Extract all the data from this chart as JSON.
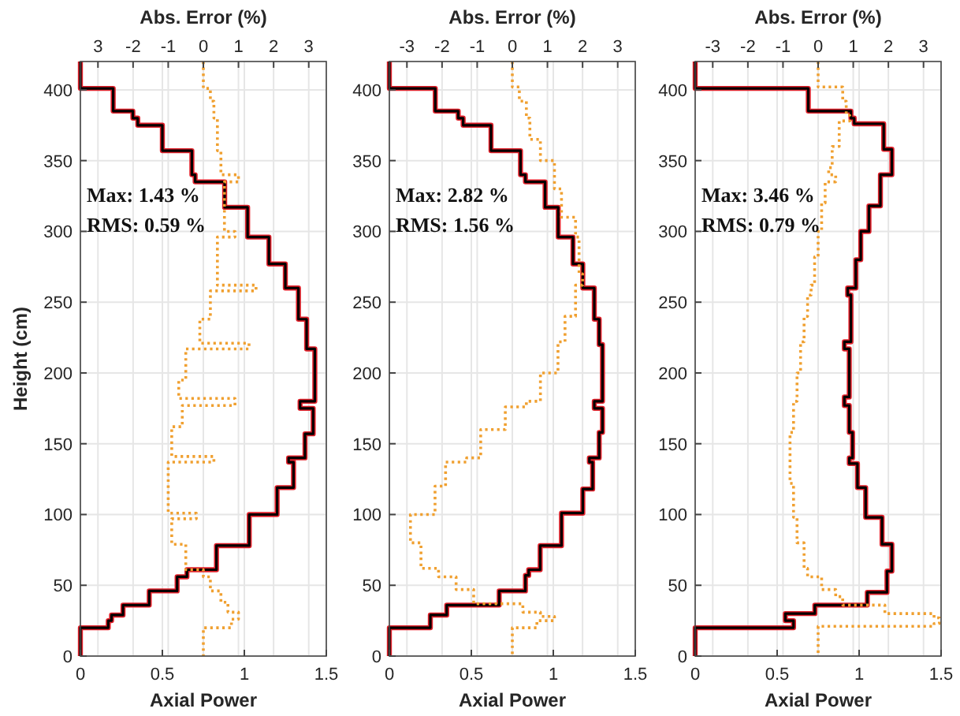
{
  "chart_data": [
    {
      "type": "line",
      "xlabel": "Axial Power",
      "ylabel": "Height (cm)",
      "x2label": "Abs. Error (%)",
      "xlim": [
        0,
        1.5
      ],
      "xticks": [
        0,
        0.5,
        1,
        1.5
      ],
      "x2lim": [
        -3.5,
        3.5
      ],
      "x2ticks": [
        {
          "value": -3,
          "label": "3"
        },
        -2,
        -1,
        0,
        1,
        2,
        3
      ],
      "ylim": [
        0,
        420
      ],
      "yticks": [
        0,
        50,
        100,
        150,
        200,
        250,
        300,
        350,
        400
      ],
      "grid": true,
      "annotations": [
        "Max: 1.43 %",
        "RMS: 0.59 %"
      ],
      "series": [
        {
          "color": "#e0202a",
          "line_style": "solid",
          "x": [
            0,
            0,
            0.2,
            0.2,
            0.32,
            0.32,
            0.35,
            0.35,
            0.5,
            0.5,
            0.68,
            0.68,
            0.7,
            0.7,
            0.88,
            0.88,
            1.02,
            1.02,
            1.15,
            1.15,
            1.25,
            1.25,
            1.33,
            1.33,
            1.38,
            1.38,
            1.43,
            1.43,
            1.34,
            1.34,
            1.42,
            1.42,
            1.37,
            1.37,
            1.27,
            1.27,
            1.3,
            1.3,
            1.2,
            1.2,
            1.03,
            1.03,
            0.83,
            0.83,
            0.65,
            0.65,
            0.59,
            0.59,
            0.42,
            0.42,
            0.26,
            0.26,
            0.19,
            0.19,
            0.17,
            0.17,
            0,
            0
          ],
          "values": [
            420,
            401,
            401,
            385,
            385,
            380,
            380,
            375,
            375,
            357,
            357,
            340,
            340,
            335,
            335,
            317,
            317,
            296,
            296,
            277,
            277,
            260,
            260,
            238,
            238,
            217,
            217,
            180,
            180,
            175,
            175,
            157,
            157,
            140,
            140,
            137,
            137,
            119,
            119,
            100,
            100,
            78,
            78,
            61,
            61,
            56,
            56,
            46,
            46,
            36,
            36,
            29,
            29,
            25,
            25,
            20,
            20,
            0
          ]
        },
        {
          "color": "#000000",
          "line_style": "solid",
          "x": [
            0,
            0,
            0.2,
            0.2,
            0.32,
            0.32,
            0.35,
            0.35,
            0.5,
            0.5,
            0.68,
            0.68,
            0.7,
            0.7,
            0.88,
            0.88,
            1.02,
            1.02,
            1.15,
            1.15,
            1.25,
            1.25,
            1.33,
            1.33,
            1.38,
            1.38,
            1.43,
            1.43,
            1.34,
            1.34,
            1.42,
            1.42,
            1.37,
            1.37,
            1.27,
            1.27,
            1.3,
            1.3,
            1.2,
            1.2,
            1.03,
            1.03,
            0.83,
            0.83,
            0.65,
            0.65,
            0.59,
            0.59,
            0.42,
            0.42,
            0.26,
            0.26,
            0.19,
            0.19,
            0.17,
            0.17,
            0,
            0
          ],
          "values": [
            420,
            401,
            401,
            385,
            385,
            380,
            380,
            375,
            375,
            357,
            357,
            340,
            340,
            335,
            335,
            317,
            317,
            296,
            296,
            277,
            277,
            260,
            260,
            238,
            238,
            217,
            217,
            180,
            180,
            175,
            175,
            157,
            157,
            140,
            140,
            137,
            137,
            119,
            119,
            100,
            100,
            78,
            78,
            61,
            61,
            56,
            56,
            46,
            46,
            36,
            36,
            29,
            29,
            25,
            25,
            20,
            20,
            0
          ]
        },
        {
          "color": "#f0a030",
          "line_style": "dotted",
          "axis": "x2",
          "x": [
            0,
            0,
            0.2,
            0.2,
            0.3,
            0.3,
            0.4,
            0.4,
            0.5,
            0.5,
            1,
            1,
            0.6,
            0.6,
            0.9,
            0.9,
            0.4,
            0.4,
            1.5,
            1.5,
            0.2,
            0.2,
            -0.1,
            -0.1,
            1.3,
            1.3,
            -0.5,
            -0.5,
            -0.7,
            -0.7,
            0.9,
            0.9,
            -0.6,
            -0.6,
            -0.9,
            -0.9,
            0.3,
            0.3,
            -1,
            -1,
            -0.2,
            -0.2,
            -0.9,
            -0.9,
            -0.5,
            -0.5,
            0,
            0,
            0.2,
            0.2,
            0.5,
            0.5,
            0.7,
            0.7,
            1,
            1,
            0.8,
            0.8,
            0,
            0
          ],
          "values": [
            420,
            401,
            401,
            392,
            392,
            380,
            380,
            357,
            357,
            340,
            340,
            335,
            335,
            300,
            300,
            296,
            296,
            262,
            262,
            258,
            258,
            238,
            238,
            221,
            221,
            217,
            217,
            195,
            195,
            182,
            182,
            177,
            177,
            162,
            162,
            141,
            141,
            137,
            137,
            101,
            101,
            97,
            97,
            79,
            79,
            61,
            61,
            56,
            56,
            46,
            46,
            38,
            38,
            31,
            31,
            26,
            26,
            20,
            20,
            0
          ]
        }
      ]
    },
    {
      "type": "line",
      "xlabel": "Axial Power",
      "x2label": "Abs. Error (%)",
      "xlim": [
        0,
        1.5
      ],
      "xticks": [
        0,
        0.5,
        1,
        1.5
      ],
      "x2lim": [
        -3.5,
        3.5
      ],
      "x2ticks": [
        -3,
        -2,
        -1,
        0,
        1,
        2,
        3
      ],
      "ylim": [
        0,
        420
      ],
      "yticks": [
        0,
        50,
        100,
        150,
        200,
        250,
        300,
        350,
        400
      ],
      "grid": true,
      "annotations": [
        "Max: 2.82 %",
        "RMS: 1.56 %"
      ],
      "series": [
        {
          "color": "#e0202a",
          "line_style": "solid",
          "x": [
            0,
            0,
            0.28,
            0.28,
            0.42,
            0.42,
            0.45,
            0.45,
            0.62,
            0.62,
            0.8,
            0.8,
            0.83,
            0.83,
            0.95,
            0.95,
            1.03,
            1.03,
            1.12,
            1.12,
            1.18,
            1.18,
            1.25,
            1.25,
            1.28,
            1.28,
            1.3,
            1.3,
            1.25,
            1.25,
            1.3,
            1.3,
            1.28,
            1.28,
            1.22,
            1.22,
            1.24,
            1.24,
            1.18,
            1.18,
            1.05,
            1.05,
            0.92,
            0.92,
            0.85,
            0.85,
            0.83,
            0.83,
            0.67,
            0.67,
            0.35,
            0.35,
            0.25,
            0.25,
            0,
            0
          ],
          "values": [
            420,
            401,
            401,
            385,
            385,
            380,
            380,
            375,
            375,
            357,
            357,
            340,
            340,
            335,
            335,
            317,
            317,
            296,
            296,
            277,
            277,
            260,
            260,
            238,
            238,
            220,
            220,
            180,
            180,
            175,
            175,
            158,
            158,
            140,
            140,
            137,
            137,
            118,
            118,
            101,
            101,
            78,
            78,
            61,
            61,
            57,
            57,
            46,
            46,
            36,
            36,
            29,
            29,
            20,
            20,
            0
          ]
        },
        {
          "color": "#000000",
          "line_style": "solid",
          "x": [
            0,
            0,
            0.28,
            0.28,
            0.42,
            0.42,
            0.45,
            0.45,
            0.62,
            0.62,
            0.8,
            0.8,
            0.83,
            0.83,
            0.95,
            0.95,
            1.03,
            1.03,
            1.12,
            1.12,
            1.18,
            1.18,
            1.25,
            1.25,
            1.28,
            1.28,
            1.3,
            1.3,
            1.25,
            1.25,
            1.3,
            1.3,
            1.28,
            1.28,
            1.22,
            1.22,
            1.24,
            1.24,
            1.18,
            1.18,
            1.05,
            1.05,
            0.92,
            0.92,
            0.85,
            0.85,
            0.83,
            0.83,
            0.67,
            0.67,
            0.35,
            0.35,
            0.25,
            0.25,
            0,
            0
          ],
          "values": [
            420,
            401,
            401,
            385,
            385,
            380,
            380,
            375,
            375,
            357,
            357,
            340,
            340,
            335,
            335,
            317,
            317,
            296,
            296,
            277,
            277,
            260,
            260,
            238,
            238,
            220,
            220,
            180,
            180,
            175,
            175,
            158,
            158,
            140,
            140,
            137,
            137,
            118,
            118,
            101,
            101,
            78,
            78,
            61,
            61,
            57,
            57,
            46,
            46,
            36,
            36,
            29,
            29,
            20,
            20,
            0
          ]
        },
        {
          "color": "#f0a030",
          "line_style": "dotted",
          "axis": "x2",
          "x": [
            0,
            0,
            0.2,
            0.2,
            0.4,
            0.4,
            0.5,
            0.5,
            0.8,
            0.8,
            1.2,
            1.2,
            1.4,
            1.4,
            1.8,
            1.8,
            1.9,
            1.9,
            2,
            2,
            1.8,
            1.8,
            1.5,
            1.5,
            1.3,
            1.3,
            0.8,
            0.8,
            0.4,
            0.4,
            -0.2,
            -0.2,
            -0.9,
            -0.9,
            -1.3,
            -1.3,
            -1.9,
            -1.9,
            -2.2,
            -2.2,
            -2.9,
            -2.9,
            -2.6,
            -2.6,
            -2.1,
            -2.1,
            -1.6,
            -1.6,
            -1.1,
            -1.1,
            0.3,
            0.3,
            0.8,
            0.8,
            1.2,
            1.2,
            0.7,
            0.7,
            0,
            0
          ],
          "values": [
            420,
            402,
            402,
            392,
            392,
            380,
            380,
            365,
            365,
            350,
            350,
            330,
            330,
            310,
            310,
            296,
            296,
            270,
            270,
            262,
            262,
            240,
            240,
            222,
            222,
            200,
            200,
            180,
            180,
            176,
            176,
            160,
            160,
            140,
            140,
            137,
            137,
            120,
            120,
            100,
            100,
            80,
            80,
            62,
            62,
            56,
            56,
            47,
            47,
            37,
            37,
            31,
            31,
            28,
            28,
            25,
            25,
            20,
            20,
            0
          ]
        }
      ]
    },
    {
      "type": "line",
      "xlabel": "Axial Power",
      "x2label": "Abs. Error (%)",
      "xlim": [
        0,
        1.5
      ],
      "xticks": [
        0,
        0.5,
        1,
        1.5
      ],
      "x2lim": [
        -3.5,
        3.5
      ],
      "x2ticks": [
        -3,
        -2,
        -1,
        0,
        1,
        2,
        3
      ],
      "ylim": [
        0,
        420
      ],
      "yticks": [
        0,
        50,
        100,
        150,
        200,
        250,
        300,
        350,
        400
      ],
      "grid": true,
      "annotations": [
        "Max: 3.46 %",
        "RMS: 0.79 %"
      ],
      "series": [
        {
          "color": "#e0202a",
          "line_style": "solid",
          "x": [
            0,
            0,
            0.69,
            0.69,
            0.95,
            0.95,
            0.97,
            0.97,
            1.15,
            1.15,
            1.2,
            1.2,
            1.13,
            1.13,
            1.06,
            1.06,
            1.01,
            1.01,
            0.98,
            0.98,
            0.93,
            0.93,
            0.95,
            0.95,
            0.91,
            0.91,
            0.94,
            0.94,
            0.91,
            0.91,
            0.94,
            0.94,
            0.96,
            0.96,
            0.94,
            0.94,
            0.99,
            0.99,
            1.04,
            1.04,
            1.14,
            1.14,
            1.2,
            1.2,
            1.17,
            1.17,
            1.05,
            1.05,
            0.73,
            0.73,
            0.55,
            0.55,
            0.6,
            0.6,
            0,
            0
          ],
          "values": [
            420,
            401,
            401,
            385,
            385,
            380,
            380,
            376,
            376,
            358,
            358,
            340,
            340,
            318,
            318,
            300,
            300,
            280,
            280,
            260,
            260,
            255,
            255,
            222,
            222,
            217,
            217,
            183,
            183,
            177,
            177,
            158,
            158,
            140,
            140,
            136,
            136,
            119,
            119,
            98,
            98,
            79,
            79,
            60,
            60,
            45,
            45,
            36,
            36,
            30,
            30,
            25,
            25,
            20,
            20,
            0
          ]
        },
        {
          "color": "#000000",
          "line_style": "solid",
          "x": [
            0,
            0,
            0.69,
            0.69,
            0.95,
            0.95,
            0.97,
            0.97,
            1.15,
            1.15,
            1.2,
            1.2,
            1.13,
            1.13,
            1.06,
            1.06,
            1.01,
            1.01,
            0.98,
            0.98,
            0.93,
            0.93,
            0.95,
            0.95,
            0.91,
            0.91,
            0.94,
            0.94,
            0.91,
            0.91,
            0.94,
            0.94,
            0.96,
            0.96,
            0.94,
            0.94,
            0.99,
            0.99,
            1.04,
            1.04,
            1.14,
            1.14,
            1.2,
            1.2,
            1.17,
            1.17,
            1.05,
            1.05,
            0.73,
            0.73,
            0.55,
            0.55,
            0.6,
            0.6,
            0,
            0
          ],
          "values": [
            420,
            401,
            401,
            385,
            385,
            380,
            380,
            376,
            376,
            358,
            358,
            340,
            340,
            318,
            318,
            300,
            300,
            280,
            280,
            260,
            260,
            255,
            255,
            222,
            222,
            217,
            217,
            183,
            183,
            177,
            177,
            158,
            158,
            140,
            140,
            136,
            136,
            119,
            119,
            98,
            98,
            79,
            79,
            60,
            60,
            45,
            45,
            36,
            36,
            30,
            30,
            25,
            25,
            20,
            20,
            0
          ]
        },
        {
          "color": "#f0a030",
          "line_style": "dotted",
          "axis": "x2",
          "x": [
            0,
            0,
            0.7,
            0.7,
            0.8,
            0.8,
            0.9,
            0.9,
            0.6,
            0.6,
            0.4,
            0.4,
            0.3,
            0.3,
            0.5,
            0.5,
            0.2,
            0.2,
            0.1,
            0.1,
            0,
            0,
            -0.1,
            -0.1,
            -0.2,
            -0.2,
            -0.3,
            -0.3,
            -0.4,
            -0.4,
            -0.5,
            -0.5,
            -0.6,
            -0.6,
            -0.7,
            -0.7,
            -0.8,
            -0.8,
            -0.7,
            -0.7,
            -0.6,
            -0.6,
            -0.4,
            -0.4,
            -0.3,
            -0.3,
            0.1,
            0.1,
            0.5,
            0.5,
            0.7,
            0.7,
            1.9,
            1.9,
            3.3,
            3.3,
            3.45,
            3.45,
            3.3,
            3.3,
            0,
            0
          ],
          "values": [
            420,
            402,
            402,
            392,
            392,
            382,
            382,
            378,
            378,
            360,
            360,
            345,
            345,
            340,
            340,
            335,
            335,
            320,
            320,
            300,
            300,
            282,
            282,
            262,
            262,
            255,
            255,
            240,
            240,
            222,
            222,
            200,
            200,
            180,
            180,
            158,
            158,
            122,
            122,
            98,
            98,
            80,
            80,
            62,
            62,
            56,
            56,
            47,
            47,
            42,
            42,
            36,
            36,
            30,
            30,
            27,
            27,
            23,
            23,
            21,
            21,
            0
          ]
        }
      ]
    }
  ]
}
